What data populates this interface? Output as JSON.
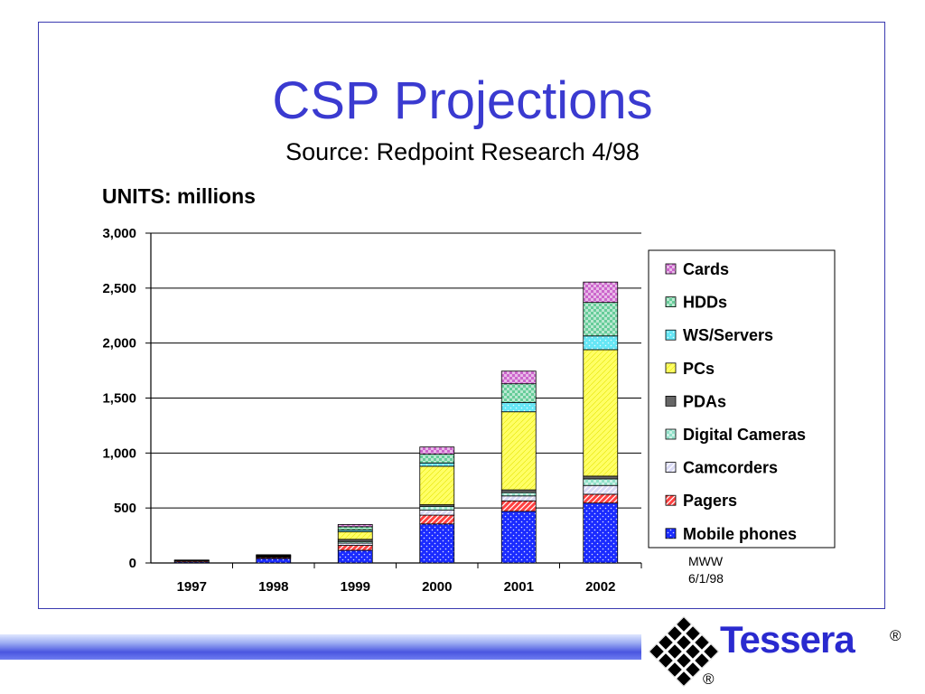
{
  "slide": {
    "title": "CSP Projections",
    "subtitle": "Source: Redpoint Research 4/98",
    "units_label": "UNITS: millions",
    "note_initials": "MWW",
    "note_date": "6/1/98",
    "logo_text": "Tessera",
    "registered_mark": "®"
  },
  "colors": {
    "title": "#3a3ad0",
    "frame": "#3a3ab0",
    "logo": "#2a2acf"
  },
  "chart_data": {
    "type": "bar",
    "stacked": true,
    "categories": [
      "1997",
      "1998",
      "1999",
      "2000",
      "2001",
      "2002"
    ],
    "ylim": [
      0,
      3000
    ],
    "yticks": [
      0,
      500,
      1000,
      1500,
      2000,
      2500,
      3000
    ],
    "ytick_labels": [
      "0",
      "500",
      "1,000",
      "1,500",
      "2,000",
      "2,500",
      "3,000"
    ],
    "grid": true,
    "legend_position": "right",
    "series": [
      {
        "name": "Mobile phones",
        "color": "#1a2bff",
        "pattern": "dots",
        "values": [
          10,
          40,
          115,
          355,
          470,
          545
        ]
      },
      {
        "name": "Pagers",
        "color": "#ff4040",
        "pattern": "diag",
        "values": [
          10,
          10,
          45,
          80,
          95,
          80
        ]
      },
      {
        "name": "Camcorders",
        "color": "#d9d9f5",
        "pattern": "diag",
        "values": [
          3,
          5,
          20,
          45,
          45,
          80
        ]
      },
      {
        "name": "Digital Cameras",
        "color": "#8fe0c8",
        "pattern": "check",
        "values": [
          2,
          5,
          15,
          35,
          30,
          60
        ]
      },
      {
        "name": "PDAs",
        "color": "#666666",
        "pattern": "solid",
        "values": [
          2,
          5,
          20,
          15,
          25,
          25
        ]
      },
      {
        "name": "PCs",
        "color": "#ffff66",
        "pattern": "fine",
        "values": [
          0,
          0,
          70,
          350,
          710,
          1150
        ]
      },
      {
        "name": "WS/Servers",
        "color": "#66e6f5",
        "pattern": "dots",
        "values": [
          0,
          0,
          15,
          30,
          85,
          125
        ]
      },
      {
        "name": "HDDs",
        "color": "#66cc99",
        "pattern": "check",
        "values": [
          0,
          5,
          30,
          80,
          170,
          305
        ]
      },
      {
        "name": "Cards",
        "color": "#cc66cc",
        "pattern": "check",
        "values": [
          0,
          5,
          20,
          65,
          115,
          185
        ]
      }
    ]
  }
}
